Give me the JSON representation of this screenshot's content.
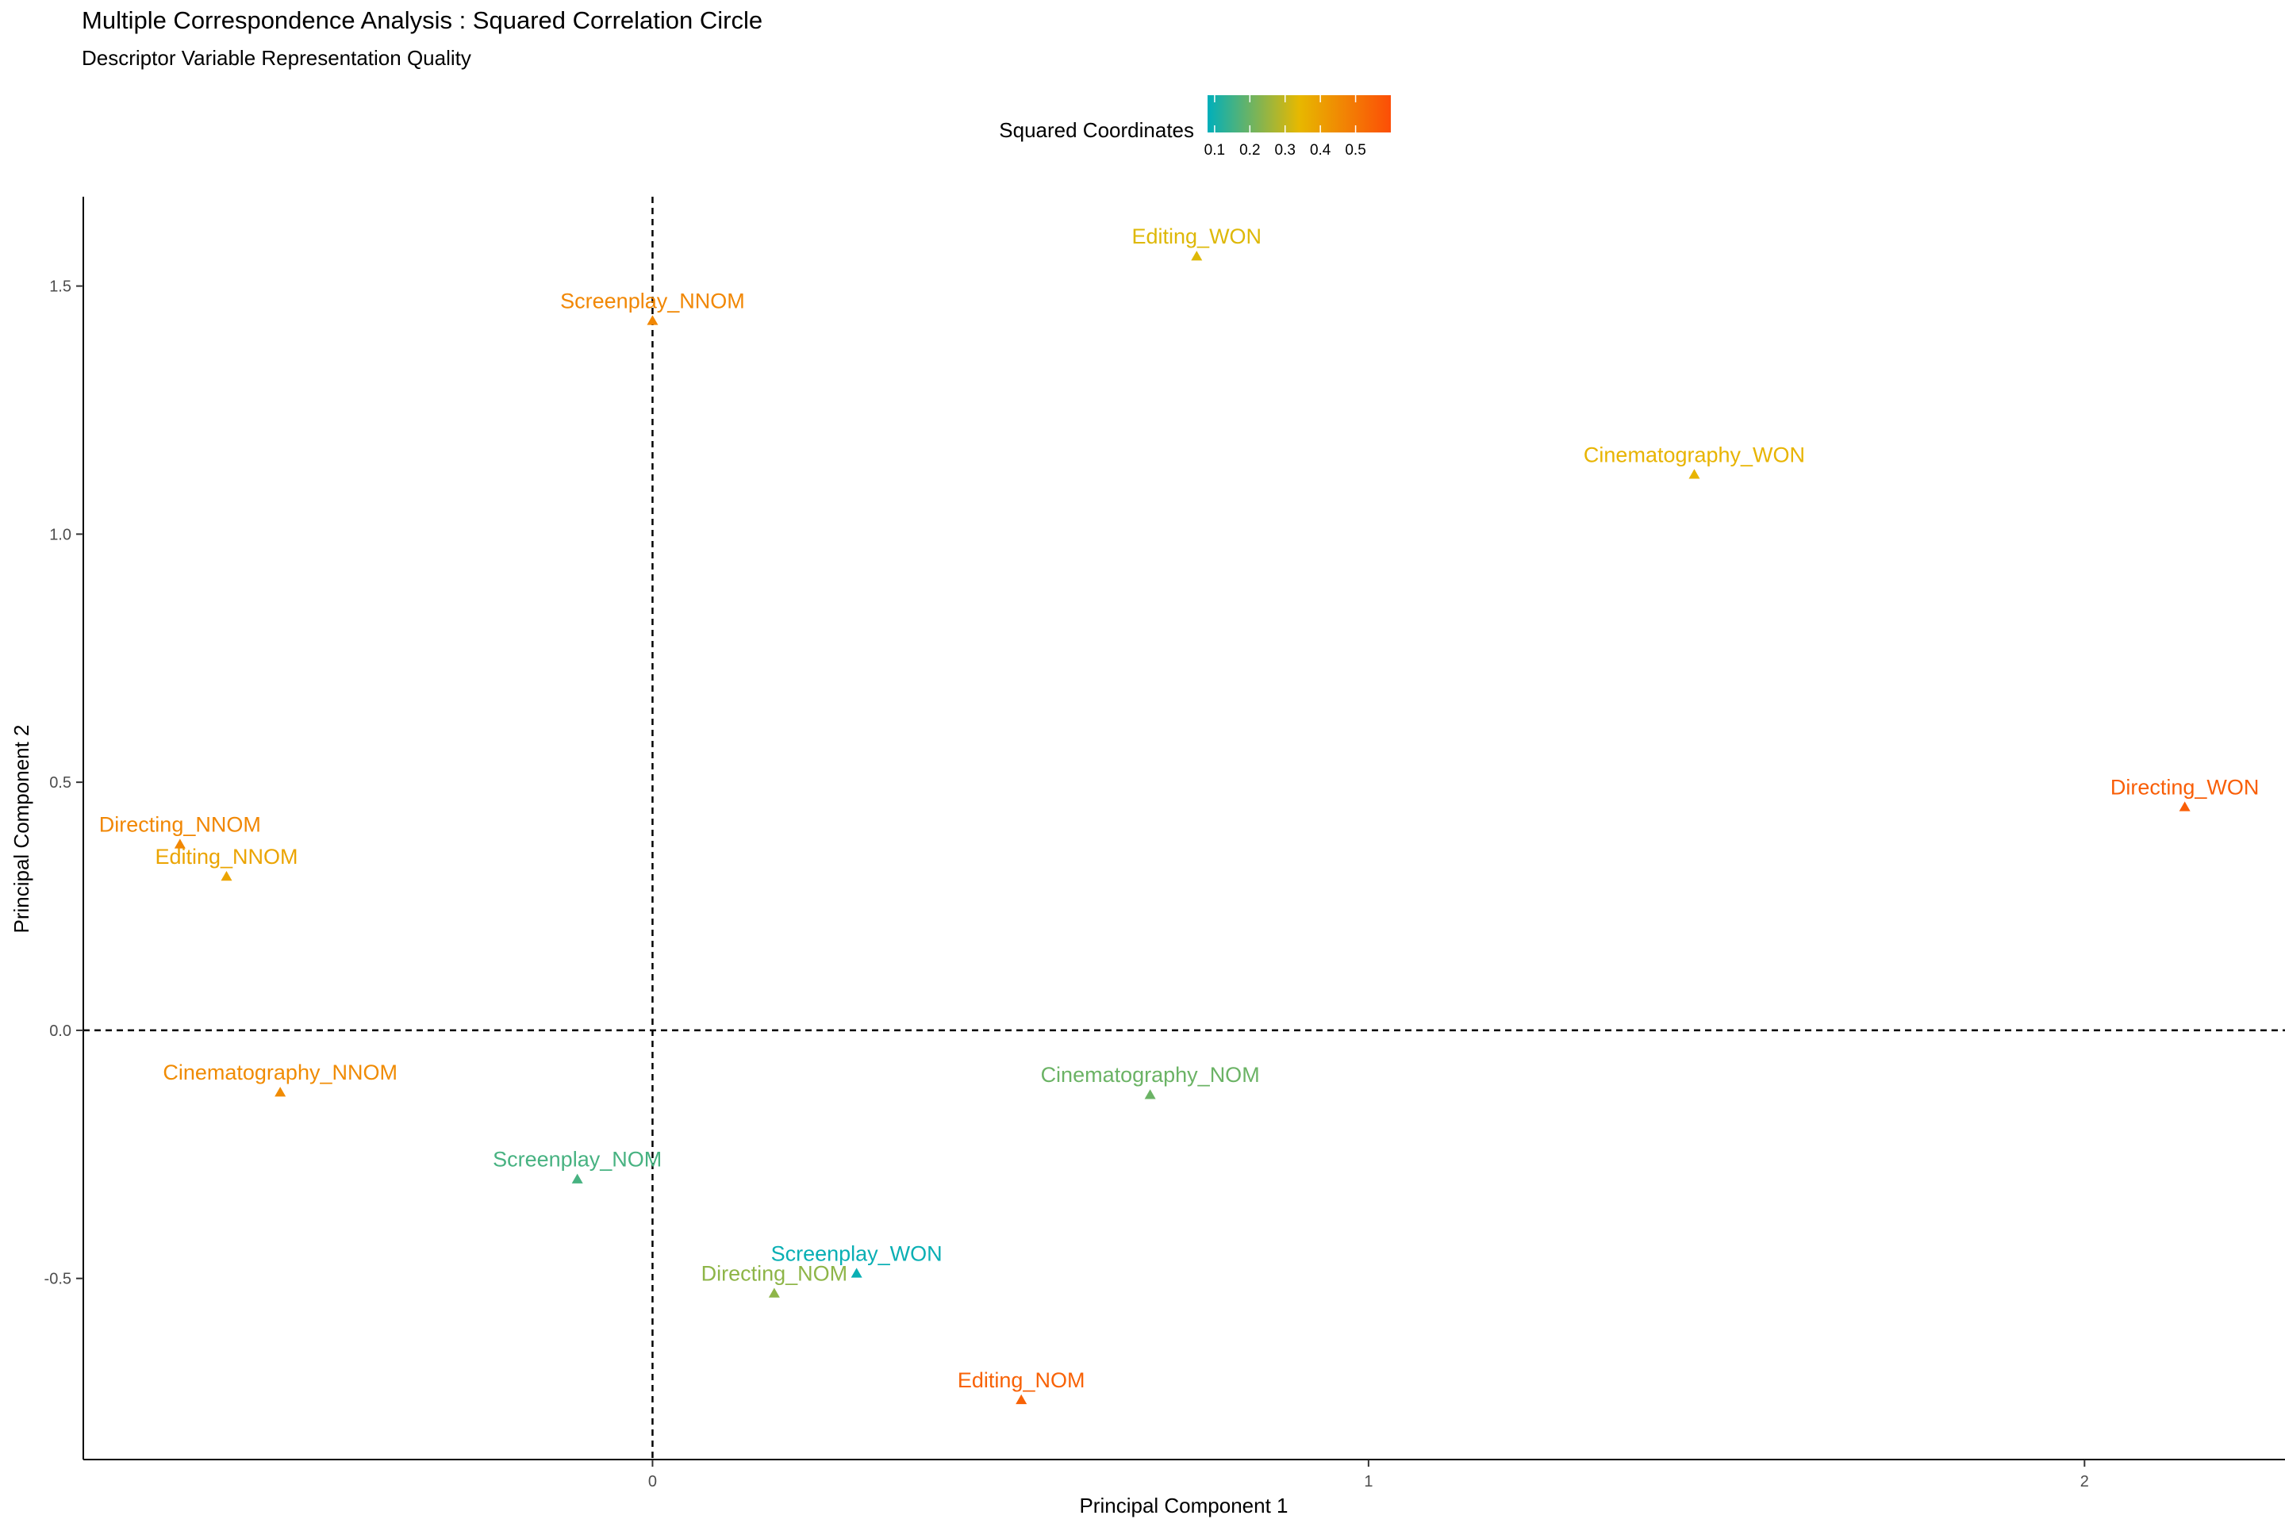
{
  "chart_data": {
    "type": "scatter",
    "title": "Multiple Correspondence Analysis : Squared Correlation Circle",
    "subtitle": "Descriptor Variable Representation Quality",
    "xlabel": "Principal Component 1",
    "ylabel": "Principal Component 2",
    "xlim": [
      -0.795,
      2.28
    ],
    "ylim": [
      -0.865,
      1.68
    ],
    "xticks": [
      "0",
      "1",
      "2"
    ],
    "yticks": [
      "-0.5",
      "0.0",
      "0.5",
      "1.0",
      "1.5"
    ],
    "grid": false,
    "reference_lines": {
      "x": 0,
      "y": 0,
      "style": "dashed"
    },
    "legend": {
      "title": "Squared Coordinates",
      "position": "top",
      "range": [
        0.08,
        0.6
      ],
      "ticks": [
        "0.1",
        "0.2",
        "0.3",
        "0.4",
        "0.5"
      ],
      "colors": [
        "#00AFBB",
        "#E7B800",
        "#FC4E07"
      ]
    },
    "points": [
      {
        "label": "Editing_WON",
        "x": 0.76,
        "y": 1.56,
        "cos2": 0.33
      },
      {
        "label": "Screenplay_NNOM",
        "x": 0.0,
        "y": 1.43,
        "cos2": 0.46
      },
      {
        "label": "Cinematography_WON",
        "x": 1.455,
        "y": 1.12,
        "cos2": 0.35
      },
      {
        "label": "Directing_WON",
        "x": 2.14,
        "y": 0.45,
        "cos2": 0.56
      },
      {
        "label": "Directing_NNOM",
        "x": -0.66,
        "y": 0.375,
        "cos2": 0.46
      },
      {
        "label": "Editing_NNOM",
        "x": -0.595,
        "y": 0.31,
        "cos2": 0.39
      },
      {
        "label": "Cinematography_NNOM",
        "x": -0.52,
        "y": -0.125,
        "cos2": 0.45
      },
      {
        "label": "Cinematography_NOM",
        "x": 0.695,
        "y": -0.13,
        "cos2": 0.2
      },
      {
        "label": "Screenplay_NOM",
        "x": -0.105,
        "y": -0.3,
        "cos2": 0.16
      },
      {
        "label": "Screenplay_WON",
        "x": 0.285,
        "y": -0.49,
        "cos2": 0.09
      },
      {
        "label": "Directing_NOM",
        "x": 0.17,
        "y": -0.53,
        "cos2": 0.24
      },
      {
        "label": "Editing_NOM",
        "x": 0.515,
        "y": -0.745,
        "cos2": 0.55
      }
    ]
  }
}
